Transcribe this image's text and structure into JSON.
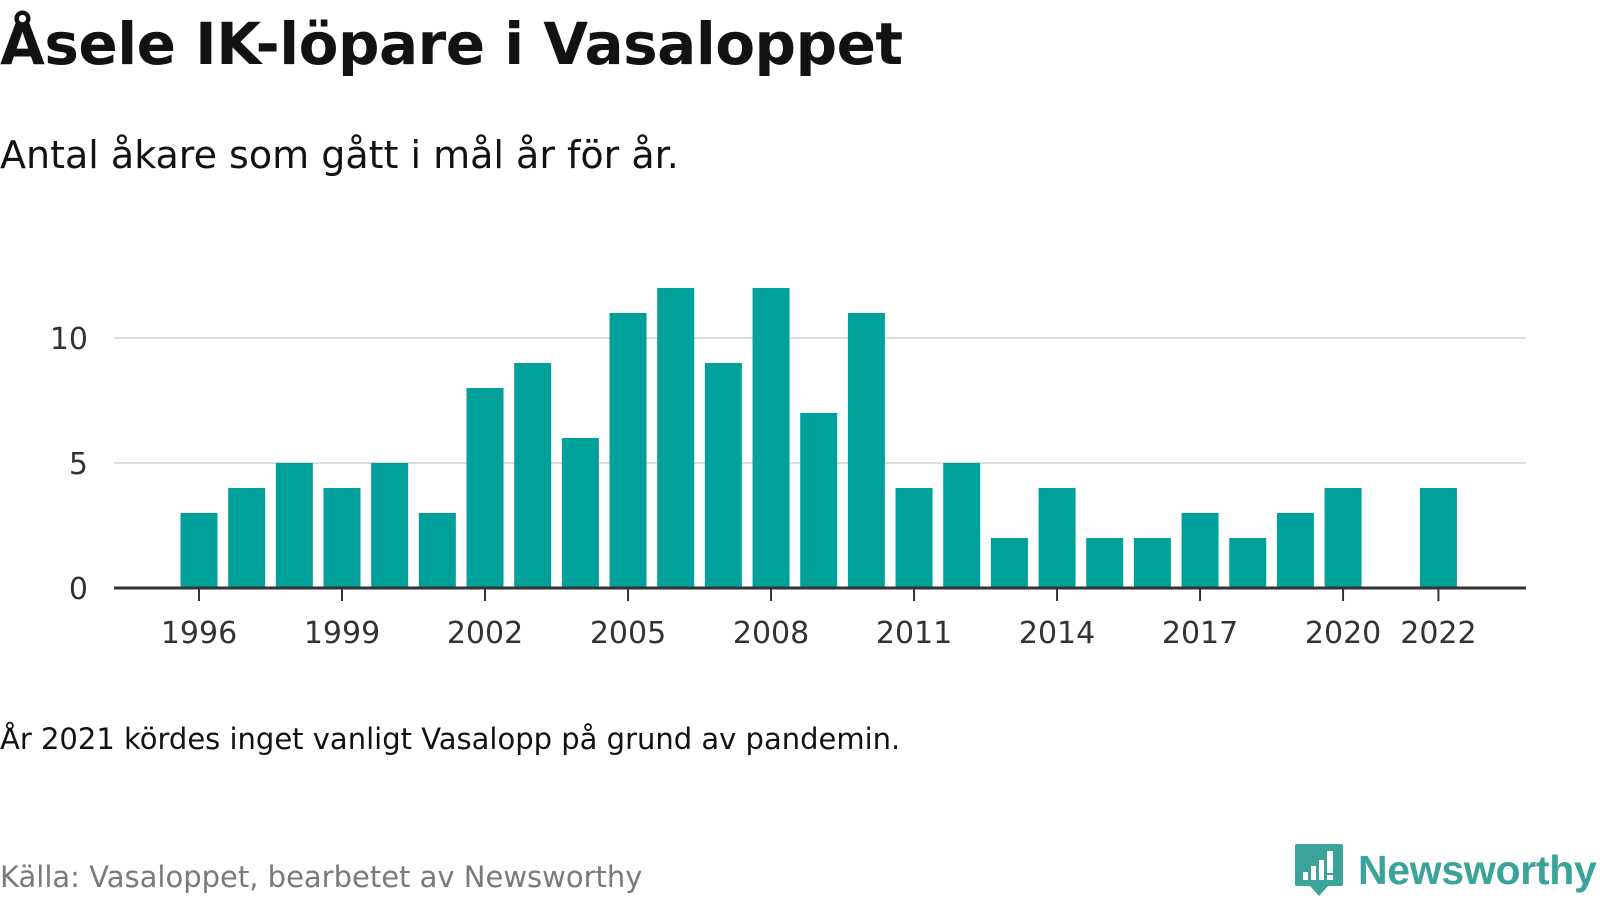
{
  "header": {
    "title": "Åsele IK-löpare i Vasaloppet",
    "subtitle": "Antal åkare som gått i mål år för år."
  },
  "footer": {
    "note": "År 2021 kördes inget vanligt Vasalopp på grund av pandemin.",
    "source": "Källa: Vasaloppet, bearbetet av Newsworthy",
    "brand": "Newsworthy"
  },
  "colors": {
    "bar": "#00a19a",
    "gridline": "#dddddd",
    "axis": "#333333",
    "brand": "#3aa39a"
  },
  "icons": {
    "brand_logo": "bar-chart-speech-bubble-icon"
  },
  "chart_data": {
    "type": "bar",
    "title": "Åsele IK-löpare i Vasaloppet",
    "subtitle": "Antal åkare som gått i mål år för år.",
    "xlabel": "",
    "ylabel": "",
    "grid": true,
    "ylim": [
      0,
      12
    ],
    "yticks": [
      0,
      5,
      10
    ],
    "xticks": [
      1996,
      1999,
      2002,
      2005,
      2008,
      2011,
      2014,
      2017,
      2020,
      2022
    ],
    "categories": [
      1996,
      1997,
      1998,
      1999,
      2000,
      2001,
      2002,
      2003,
      2004,
      2005,
      2006,
      2007,
      2008,
      2009,
      2010,
      2011,
      2012,
      2013,
      2014,
      2015,
      2016,
      2017,
      2018,
      2019,
      2020,
      2021,
      2022
    ],
    "values": [
      3,
      4,
      5,
      4,
      5,
      3,
      8,
      9,
      6,
      11,
      12,
      9,
      12,
      7,
      11,
      4,
      5,
      2,
      4,
      2,
      2,
      3,
      2,
      3,
      4,
      null,
      4
    ]
  }
}
